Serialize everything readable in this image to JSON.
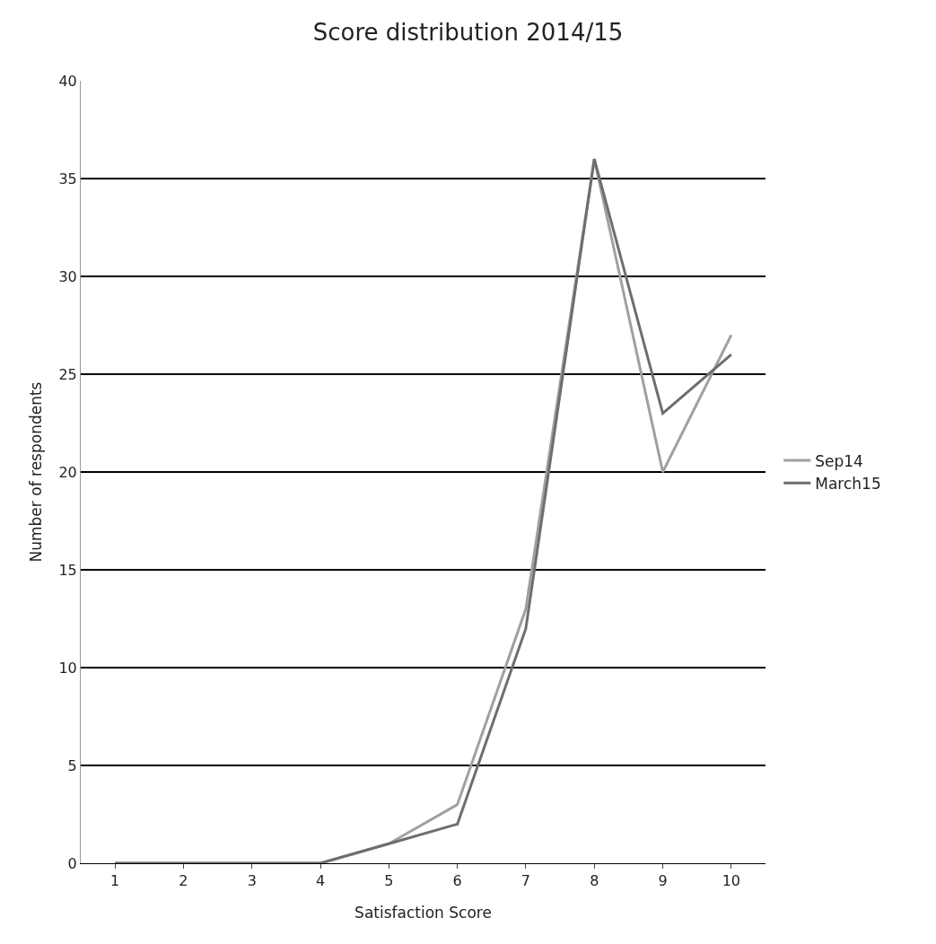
{
  "chart_data": {
    "type": "line",
    "title": "Score distribution 2014/15",
    "xlabel": "Satisfaction Score",
    "ylabel": "Number of respondents",
    "categories": [
      "1",
      "2",
      "3",
      "4",
      "5",
      "6",
      "7",
      "8",
      "9",
      "10"
    ],
    "series": [
      {
        "name": "Sep14",
        "color": "#a0a0a0",
        "values": [
          0,
          0,
          0,
          0,
          1,
          3,
          13,
          36,
          20,
          27
        ]
      },
      {
        "name": "March15",
        "color": "#6e6e6e",
        "values": [
          0,
          0,
          0,
          0,
          1,
          2,
          12,
          36,
          23,
          26
        ]
      }
    ],
    "ylim": [
      0,
      40
    ],
    "yticks": [
      0,
      5,
      10,
      15,
      20,
      25,
      30,
      35,
      40
    ],
    "grid": "y",
    "legend": "right",
    "marker": "none",
    "line_style": "solid"
  }
}
